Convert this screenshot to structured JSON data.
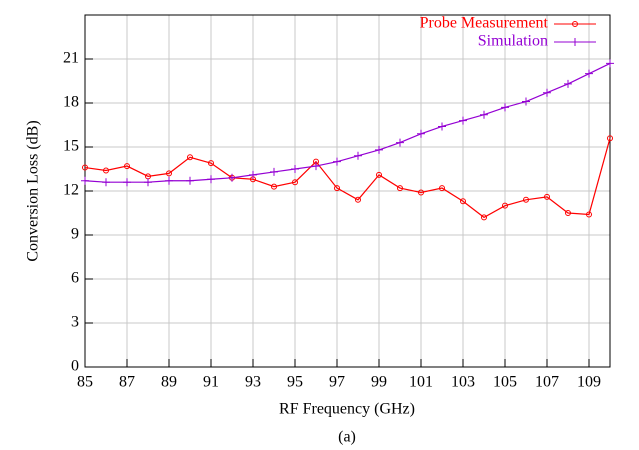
{
  "chart_data": {
    "type": "line",
    "x_label": "RF Frequency (GHz)",
    "y_label": "Conversion Loss (dB)",
    "caption": "(a)",
    "x": [
      85,
      86,
      87,
      88,
      89,
      90,
      91,
      92,
      93,
      94,
      95,
      96,
      97,
      98,
      99,
      100,
      101,
      102,
      103,
      104,
      105,
      106,
      107,
      108,
      109,
      110
    ],
    "series": [
      {
        "name": "Probe Measurement",
        "color": "#ff0000",
        "marker": "circle",
        "values": [
          13.6,
          13.4,
          13.7,
          13.0,
          13.2,
          14.3,
          13.9,
          12.9,
          12.8,
          12.3,
          12.6,
          14.0,
          12.2,
          11.4,
          13.1,
          12.2,
          11.9,
          12.2,
          11.3,
          10.2,
          11.0,
          11.4,
          11.6,
          10.5,
          10.4,
          15.6
        ]
      },
      {
        "name": "Simulation",
        "color": "#9400d3",
        "marker": "plus",
        "values": [
          12.7,
          12.6,
          12.6,
          12.6,
          12.7,
          12.7,
          12.8,
          12.9,
          13.1,
          13.3,
          13.5,
          13.7,
          14.0,
          14.4,
          14.8,
          15.3,
          15.9,
          16.4,
          16.8,
          17.2,
          17.7,
          18.1,
          18.7,
          19.3,
          20.0,
          20.7
        ]
      }
    ],
    "xlim": [
      85,
      110
    ],
    "xticks": [
      85,
      87,
      89,
      91,
      93,
      95,
      97,
      99,
      101,
      103,
      105,
      107,
      109
    ],
    "ylim": [
      0,
      24
    ],
    "yticks": [
      0,
      3,
      6,
      9,
      12,
      15,
      18,
      21
    ],
    "grid": true,
    "legend": "top-right"
  }
}
